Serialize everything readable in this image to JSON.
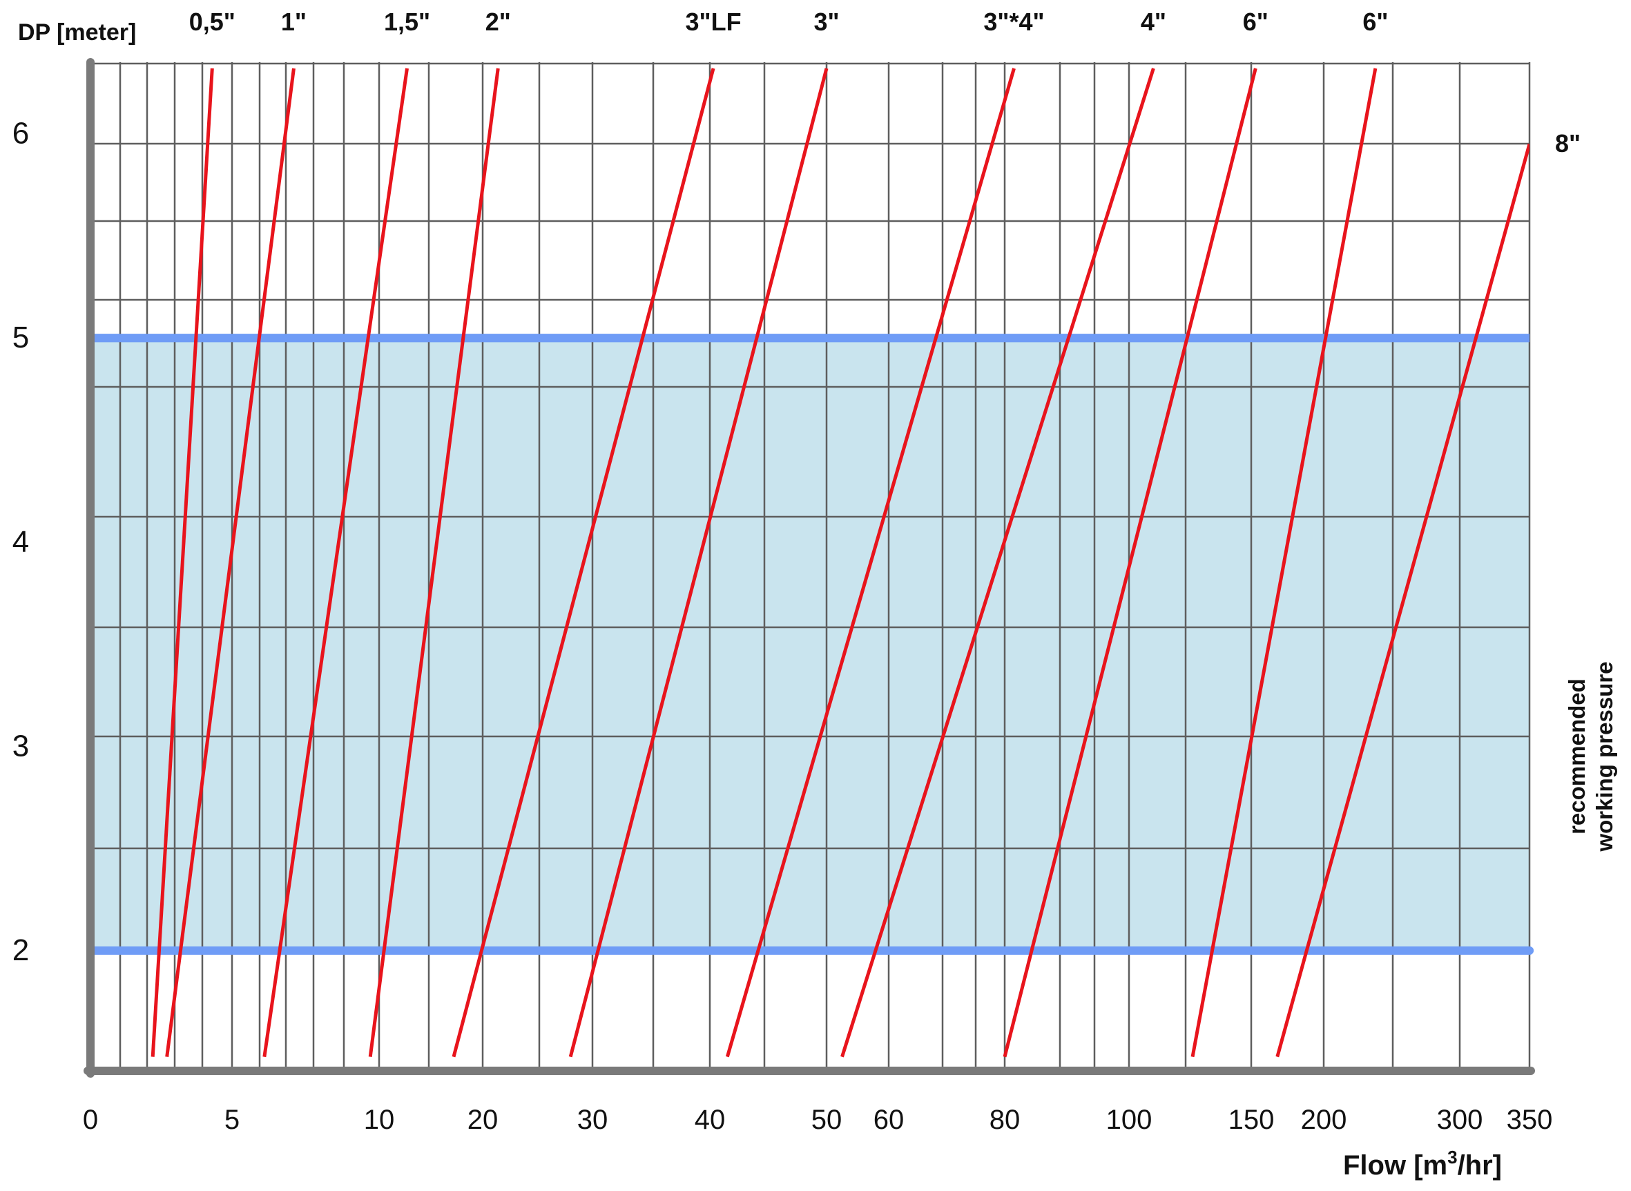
{
  "chart_data": {
    "type": "line",
    "title": "",
    "xlabel_main": "Flow [m",
    "xlabel_sup": "3",
    "xlabel_tail": "/hr]",
    "ylabel": "DP [meter]",
    "x_scale": "piecewise (non-linear)",
    "x_ticks": [
      {
        "value": 0,
        "label": "0"
      },
      {
        "value": 5,
        "label": "5"
      },
      {
        "value": 10,
        "label": "10"
      },
      {
        "value": 20,
        "label": "20"
      },
      {
        "value": 30,
        "label": "30"
      },
      {
        "value": 40,
        "label": "40"
      },
      {
        "value": 50,
        "label": "50"
      },
      {
        "value": 60,
        "label": "60"
      },
      {
        "value": 80,
        "label": "80"
      },
      {
        "value": 100,
        "label": "100"
      },
      {
        "value": 150,
        "label": "150"
      },
      {
        "value": 200,
        "label": "200"
      },
      {
        "value": 300,
        "label": "300"
      },
      {
        "value": 350,
        "label": "350"
      }
    ],
    "y_ticks": [
      {
        "value": 2,
        "label": "2"
      },
      {
        "value": 3,
        "label": "3"
      },
      {
        "value": 4,
        "label": "4"
      },
      {
        "value": 5,
        "label": "5"
      },
      {
        "value": 6,
        "label": "6"
      }
    ],
    "ylim": [
      1.48,
      6.32
    ],
    "grid": true,
    "recommended_band": {
      "ymin": 2,
      "ymax": 5,
      "label_line1": "recommended",
      "label_line2": "working pressure"
    },
    "series": [
      {
        "name": "0,5\"",
        "points": [
          [
            2.2,
            1.48
          ],
          [
            4.3,
            6.32
          ]
        ]
      },
      {
        "name": "1\"",
        "points": [
          [
            2.7,
            1.48
          ],
          [
            7.1,
            6.32
          ]
        ]
      },
      {
        "name": "1,5\"",
        "points": [
          [
            6.1,
            1.48
          ],
          [
            12.7,
            6.32
          ]
        ]
      },
      {
        "name": "2\"",
        "points": [
          [
            9.7,
            1.48
          ],
          [
            21.4,
            6.32
          ]
        ]
      },
      {
        "name": "3\"LF",
        "points": [
          [
            17.2,
            1.48
          ],
          [
            40.3,
            6.32
          ]
        ]
      },
      {
        "name": "3\"",
        "points": [
          [
            28.0,
            1.48
          ],
          [
            50.0,
            6.32
          ]
        ]
      },
      {
        "name": "3\"*4\"",
        "points": [
          [
            41.5,
            1.48
          ],
          [
            81.5,
            6.32
          ]
        ]
      },
      {
        "name": "4\"",
        "points": [
          [
            52.5,
            1.48
          ],
          [
            110.0,
            6.32
          ]
        ]
      },
      {
        "name": "6\"",
        "points": [
          [
            80.0,
            1.48
          ],
          [
            153.0,
            6.32
          ]
        ]
      },
      {
        "name": "6\"",
        "points": [
          [
            126.0,
            1.48
          ],
          [
            238.0,
            6.32
          ]
        ]
      },
      {
        "name": "8\"",
        "points": [
          [
            168.0,
            1.48
          ],
          [
            350.0,
            5.95
          ]
        ]
      }
    ],
    "colors": {
      "line": "#e8141c",
      "band_fill": "#c9e4ee",
      "band_edge": "#6f9cf6",
      "axis": "#7a7a7a",
      "grid": "#5e5e5e"
    }
  }
}
